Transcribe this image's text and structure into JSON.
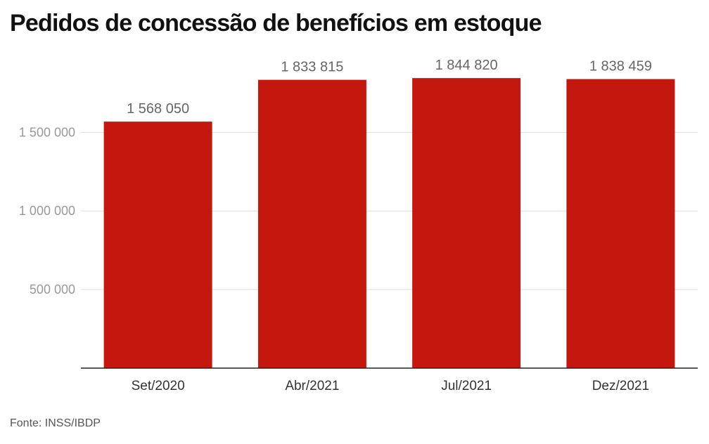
{
  "chart_data": {
    "type": "bar",
    "title": "Pedidos de concessão de benefícios em estoque",
    "categories": [
      "Set/2020",
      "Abr/2021",
      "Jul/2021",
      "Dez/2021"
    ],
    "values": [
      1568050,
      1833815,
      1844820,
      1838459
    ],
    "data_labels": [
      "1 568 050",
      "1 833 815",
      "1 844 820",
      "1 838 459"
    ],
    "y_ticks": [
      500000,
      1000000,
      1500000
    ],
    "y_tick_labels": [
      "500 000",
      "1 000 000",
      "1 500 000"
    ],
    "ylim": [
      0,
      1850000
    ],
    "xlabel": "",
    "ylabel": "",
    "grid": true,
    "colors": {
      "bar": "#c4180e",
      "grid": "#dddddd",
      "axis": "#222222"
    }
  },
  "source": "Fonte: INSS/IBDP"
}
